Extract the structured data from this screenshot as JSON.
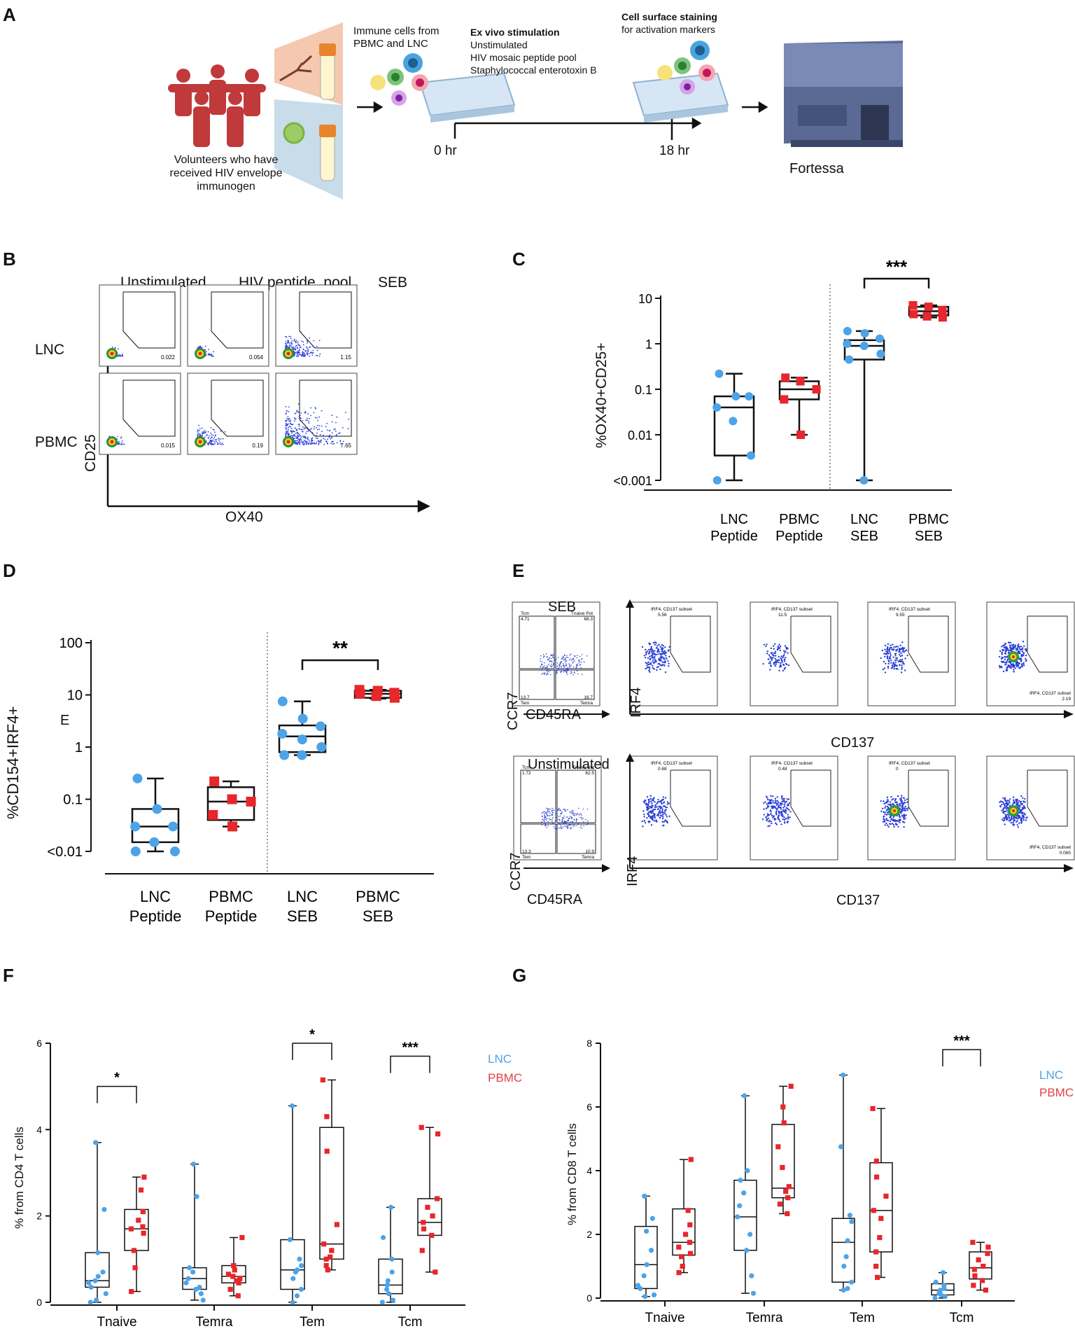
{
  "panel_letters": [
    "A",
    "B",
    "C",
    "D",
    "E",
    "F",
    "G"
  ],
  "colors": {
    "lnc": "#4da3e8",
    "pbmc": "#e8262b",
    "people": "#c0393b",
    "lnc_text": "#4da3e8",
    "pbmc_text": "#e0424a",
    "device": "#5a6a95",
    "wedge_top": "#f4c9b0",
    "wedge_bottom": "#c8dcea"
  },
  "panel_a": {
    "volunteers": [
      "Volunteers who have",
      "received HIV envelope",
      "immunogen"
    ],
    "immune_cells": [
      "Immune cells from",
      "PBMC and LNC"
    ],
    "stim_title": "Ex vivo stimulation",
    "stim_items": [
      "Unstimulated",
      "HIV mosaic peptide pool",
      "Staphylococcal enterotoxin B"
    ],
    "stain_title": "Cell surface staining",
    "stain_sub": "for activation markers",
    "t0": "0 hr",
    "t18": "18 hr",
    "instrument": "Fortessa"
  },
  "panel_b": {
    "col_headers": [
      "Unstimulated",
      "HIV peptide  pool",
      "SEB"
    ],
    "row_labels": [
      "LNC",
      "PBMC"
    ],
    "y_axis": "CD25",
    "x_axis": "OX40",
    "gate_values": [
      [
        "0.022",
        "0.054",
        "1.15"
      ],
      [
        "0.015",
        "0.19",
        "7.65"
      ]
    ]
  },
  "panel_e": {
    "top_title": "SEB",
    "bottom_title": "Unstimulated",
    "ccr7": "CCR7",
    "cd45ra": "CD45RA",
    "irf4": "IRF4",
    "cd137": "CD137",
    "top_quadrants": {
      "tcm": "Tcm",
      "tcm_v": "4.71",
      "tnaive": "Tnaive Pot",
      "tnaive_v": "68.3",
      "tem": "Tem",
      "tem_v": "13.7",
      "temra": "Temra",
      "temra_v": "16.7"
    },
    "bottom_quadrants": {
      "tcm": "Tcm",
      "tcm_v": "1.72",
      "tnaive": "Tnaive Pot",
      "tnaive_v": "62.5",
      "tem": "Tem",
      "tem_v": "13.3",
      "temra": "Temra",
      "temra_v": "10.9"
    },
    "subset_label": "IRF4, CD137 subset",
    "top_values": [
      "5.56",
      "11.5",
      "9.55",
      "2.19"
    ],
    "bottom_values": [
      "0.68",
      "0.48",
      "0",
      "0.065"
    ]
  },
  "chart_data": [
    {
      "id": "C",
      "type": "box",
      "ylabel": "%OX40+CD25+",
      "scale": "log",
      "ylim": [
        0.001,
        10
      ],
      "yticks": [
        {
          "v": 10,
          "label": "10"
        },
        {
          "v": 1,
          "label": "1"
        },
        {
          "v": 0.1,
          "label": "0.1"
        },
        {
          "v": 0.01,
          "label": "0.01"
        },
        {
          "v": 0.001,
          "label": "<0.001"
        }
      ],
      "categories": [
        [
          "LNC",
          "Peptide"
        ],
        [
          "PBMC",
          "Peptide"
        ],
        [
          "LNC",
          "SEB"
        ],
        [
          "PBMC",
          "SEB"
        ]
      ],
      "groups": [
        {
          "series": "LNC",
          "min": 0.001,
          "q1": 0.0035,
          "median": 0.04,
          "q3": 0.07,
          "max": 0.22,
          "points": [
            0.22,
            0.07,
            0.07,
            0.04,
            0.02,
            0.0035,
            0.001
          ]
        },
        {
          "series": "PBMC",
          "min": 0.01,
          "q1": 0.06,
          "median": 0.1,
          "q3": 0.15,
          "max": 0.18,
          "points": [
            0.18,
            0.15,
            0.1,
            0.06,
            0.01
          ]
        },
        {
          "series": "LNC",
          "min": 0.001,
          "q1": 0.45,
          "median": 0.9,
          "q3": 1.2,
          "max": 1.9,
          "points": [
            1.9,
            1.7,
            1.3,
            1.0,
            0.9,
            0.6,
            0.45,
            0.001
          ]
        },
        {
          "series": "PBMC",
          "min": 3.8,
          "q1": 4.2,
          "median": 5.2,
          "q3": 6.5,
          "max": 7.0,
          "points": [
            7.0,
            6.5,
            5.5,
            4.5,
            4.0,
            3.8
          ]
        }
      ],
      "significance": [
        {
          "from": 2,
          "to": 3,
          "label": "***"
        }
      ]
    },
    {
      "id": "D",
      "type": "box",
      "ylabel": "%CD154+IRF4+",
      "axis_annotation": "E",
      "scale": "log",
      "ylim": [
        0.01,
        100
      ],
      "yticks": [
        {
          "v": 100,
          "label": "100"
        },
        {
          "v": 10,
          "label": "10"
        },
        {
          "v": 1,
          "label": "1"
        },
        {
          "v": 0.1,
          "label": "0.1"
        },
        {
          "v": 0.01,
          "label": "<0.01"
        }
      ],
      "categories": [
        [
          "LNC",
          "Peptide"
        ],
        [
          "PBMC",
          "Peptide"
        ],
        [
          "LNC",
          "SEB"
        ],
        [
          "PBMC",
          "SEB"
        ]
      ],
      "groups": [
        {
          "series": "LNC",
          "min": 0.01,
          "q1": 0.015,
          "median": 0.03,
          "q3": 0.065,
          "max": 0.25,
          "points": [
            0.25,
            0.065,
            0.03,
            0.03,
            0.015,
            0.01,
            0.01
          ]
        },
        {
          "series": "PBMC",
          "min": 0.03,
          "q1": 0.04,
          "median": 0.09,
          "q3": 0.17,
          "max": 0.22,
          "points": [
            0.22,
            0.1,
            0.09,
            0.05,
            0.03
          ]
        },
        {
          "series": "LNC",
          "min": 0.7,
          "q1": 0.8,
          "median": 1.6,
          "q3": 2.6,
          "max": 7.5,
          "points": [
            7.5,
            3.5,
            2.5,
            1.8,
            1.4,
            1.0,
            0.7,
            0.7
          ]
        },
        {
          "series": "PBMC",
          "min": 8.5,
          "q1": 8.8,
          "median": 10.5,
          "q3": 12,
          "max": 12.5,
          "points": [
            12.5,
            12,
            11,
            10.5,
            9.5,
            8.8
          ]
        }
      ],
      "significance": [
        {
          "from": 2,
          "to": 3,
          "label": "**"
        }
      ]
    },
    {
      "id": "F",
      "type": "box",
      "ylabel": "% from CD4 T cells",
      "scale": "linear",
      "ylim": [
        0,
        6
      ],
      "yticks": [
        {
          "v": 0,
          "label": "0"
        },
        {
          "v": 2,
          "label": "2"
        },
        {
          "v": 4,
          "label": "4"
        },
        {
          "v": 6,
          "label": "6"
        }
      ],
      "categories": [
        "Tnaive",
        "Temra",
        "Tem",
        "Tcm"
      ],
      "legend": [
        "LNC",
        "PBMC"
      ],
      "groups": [
        {
          "cat": 0,
          "series": "LNC",
          "min": 0,
          "q1": 0.35,
          "median": 0.5,
          "q3": 1.15,
          "max": 3.7,
          "points": [
            3.7,
            2.15,
            1.15,
            0.7,
            0.6,
            0.5,
            0.45,
            0.35,
            0.2,
            0.05,
            0
          ]
        },
        {
          "cat": 0,
          "series": "PBMC",
          "min": 0.25,
          "q1": 1.2,
          "median": 1.7,
          "q3": 2.15,
          "max": 2.9,
          "points": [
            2.9,
            2.6,
            2.1,
            1.9,
            1.75,
            1.7,
            1.6,
            1.2,
            0.8,
            0.25
          ]
        },
        {
          "cat": 1,
          "series": "LNC",
          "min": 0.05,
          "q1": 0.3,
          "median": 0.55,
          "q3": 0.8,
          "max": 3.2,
          "points": [
            3.2,
            2.45,
            0.8,
            0.7,
            0.55,
            0.45,
            0.35,
            0.3,
            0.2,
            0.05
          ]
        },
        {
          "cat": 1,
          "series": "PBMC",
          "min": 0.15,
          "q1": 0.45,
          "median": 0.6,
          "q3": 0.85,
          "max": 1.5,
          "points": [
            1.5,
            0.85,
            0.75,
            0.65,
            0.6,
            0.55,
            0.5,
            0.45,
            0.3,
            0.15
          ]
        },
        {
          "cat": 2,
          "series": "LNC",
          "min": 0,
          "q1": 0.3,
          "median": 0.75,
          "q3": 1.45,
          "max": 4.55,
          "points": [
            4.55,
            1.45,
            1.0,
            0.85,
            0.75,
            0.7,
            0.55,
            0.3,
            0.15,
            0
          ]
        },
        {
          "cat": 2,
          "series": "PBMC",
          "min": 0.75,
          "q1": 1.0,
          "median": 1.35,
          "q3": 4.05,
          "max": 5.15,
          "points": [
            5.15,
            4.3,
            3.5,
            1.8,
            1.35,
            1.2,
            1.05,
            1.0,
            0.85,
            0.75
          ]
        },
        {
          "cat": 3,
          "series": "LNC",
          "min": 0,
          "q1": 0.2,
          "median": 0.4,
          "q3": 1.0,
          "max": 2.2,
          "points": [
            2.2,
            1.5,
            1.0,
            0.7,
            0.5,
            0.4,
            0.3,
            0.2,
            0.05,
            0
          ]
        },
        {
          "cat": 3,
          "series": "PBMC",
          "min": 0.7,
          "q1": 1.55,
          "median": 1.85,
          "q3": 2.4,
          "max": 4.05,
          "points": [
            4.05,
            3.9,
            2.4,
            2.2,
            2.0,
            1.85,
            1.7,
            1.55,
            1.2,
            0.7
          ]
        }
      ],
      "significance": [
        {
          "cat": 0,
          "label": "*",
          "y": 5.0
        },
        {
          "cat": 2,
          "label": "*",
          "y": 6.0
        },
        {
          "cat": 3,
          "label": "***",
          "y": 5.7
        }
      ]
    },
    {
      "id": "G",
      "type": "box",
      "ylabel": "% from CD8 T cells",
      "scale": "linear",
      "ylim": [
        0,
        8
      ],
      "yticks": [
        {
          "v": 0,
          "label": "0"
        },
        {
          "v": 2,
          "label": "2"
        },
        {
          "v": 4,
          "label": "4"
        },
        {
          "v": 6,
          "label": "6"
        },
        {
          "v": 8,
          "label": "8"
        }
      ],
      "categories": [
        "Tnaive",
        "Temra",
        "Tem",
        "Tcm"
      ],
      "legend": [
        "LNC",
        "PBMC"
      ],
      "groups": [
        {
          "cat": 0,
          "series": "LNC",
          "min": 0.05,
          "q1": 0.3,
          "median": 1.05,
          "q3": 2.25,
          "max": 3.2,
          "points": [
            3.2,
            2.5,
            2.1,
            1.5,
            1.05,
            0.7,
            0.4,
            0.3,
            0.1,
            0.05
          ]
        },
        {
          "cat": 0,
          "series": "PBMC",
          "min": 0.8,
          "q1": 1.35,
          "median": 1.75,
          "q3": 2.8,
          "max": 4.35,
          "points": [
            4.35,
            2.75,
            2.3,
            2.0,
            1.75,
            1.6,
            1.4,
            1.3,
            1.0,
            0.8
          ]
        },
        {
          "cat": 1,
          "series": "LNC",
          "min": 0.15,
          "q1": 1.5,
          "median": 2.55,
          "q3": 3.7,
          "max": 6.35,
          "points": [
            6.35,
            4.0,
            3.7,
            3.3,
            2.9,
            2.55,
            2.0,
            1.5,
            0.7,
            0.15
          ]
        },
        {
          "cat": 1,
          "series": "PBMC",
          "min": 2.65,
          "q1": 3.15,
          "median": 3.45,
          "q3": 5.45,
          "max": 6.65,
          "points": [
            6.65,
            6.0,
            5.5,
            4.75,
            4.1,
            3.5,
            3.35,
            3.15,
            2.95,
            2.65
          ]
        },
        {
          "cat": 2,
          "series": "LNC",
          "min": 0.25,
          "q1": 0.5,
          "median": 1.75,
          "q3": 2.5,
          "max": 7.0,
          "points": [
            7.0,
            4.75,
            2.6,
            2.4,
            1.8,
            1.3,
            1.0,
            0.5,
            0.3,
            0.25
          ]
        },
        {
          "cat": 2,
          "series": "PBMC",
          "min": 0.65,
          "q1": 1.45,
          "median": 2.75,
          "q3": 4.25,
          "max": 5.95,
          "points": [
            5.95,
            4.3,
            3.8,
            3.2,
            2.75,
            2.5,
            1.9,
            1.45,
            1.0,
            0.65
          ]
        },
        {
          "cat": 3,
          "series": "LNC",
          "min": 0,
          "q1": 0.1,
          "median": 0.25,
          "q3": 0.45,
          "max": 0.8,
          "points": [
            0.8,
            0.5,
            0.4,
            0.3,
            0.25,
            0.2,
            0.15,
            0.1,
            0.05,
            0
          ]
        },
        {
          "cat": 3,
          "series": "PBMC",
          "min": 0.25,
          "q1": 0.6,
          "median": 0.95,
          "q3": 1.45,
          "max": 1.75,
          "points": [
            1.75,
            1.6,
            1.4,
            1.2,
            1.0,
            0.9,
            0.7,
            0.55,
            0.4,
            0.25
          ]
        }
      ],
      "significance": [
        {
          "cat": 3,
          "label": "***",
          "y": 7.8
        }
      ]
    }
  ]
}
